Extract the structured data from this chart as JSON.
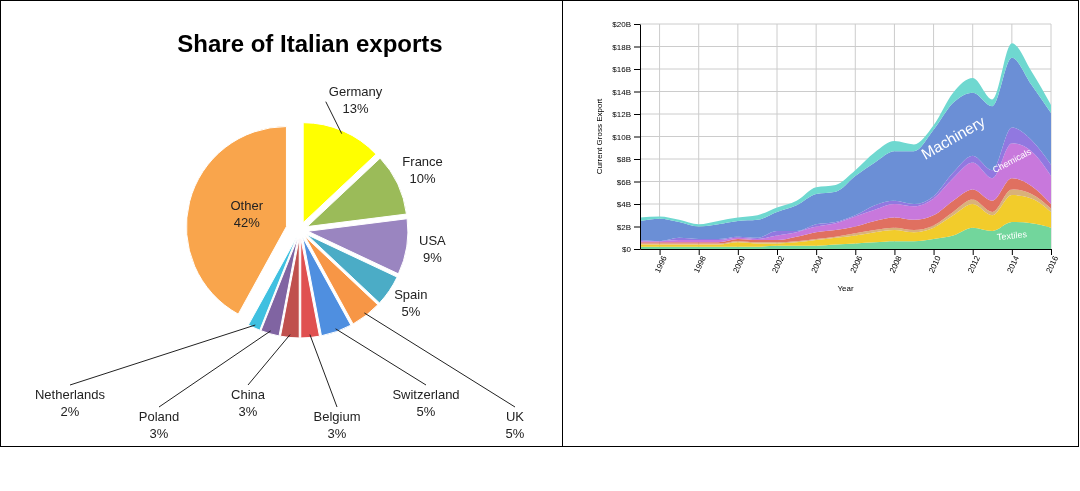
{
  "chart_data": [
    {
      "type": "pie",
      "title": "Share of Italian exports",
      "categories": [
        "Germany",
        "France",
        "USA",
        "Spain",
        "UK",
        "Switzerland",
        "Belgium",
        "China",
        "Poland",
        "Netherlands",
        "Other"
      ],
      "values": [
        13,
        10,
        9,
        5,
        5,
        5,
        3,
        3,
        3,
        2,
        42
      ],
      "colors": [
        "#ffff00",
        "#9bbb59",
        "#9a85c0",
        "#4bacc6",
        "#f79646",
        "#4f8fe0",
        "#e05050",
        "#c0504d",
        "#8064a2",
        "#3fc0e0",
        "#f9a54c"
      ],
      "value_labels": [
        "13%",
        "10%",
        "9%",
        "5%",
        "5%",
        "5%",
        "3%",
        "3%",
        "3%",
        "2%",
        "42%"
      ]
    },
    {
      "type": "area",
      "stacked": true,
      "xlabel": "Year",
      "ylabel": "Current Gross Export",
      "x": [
        1995,
        1996,
        1997,
        1998,
        1999,
        2000,
        2001,
        2002,
        2003,
        2004,
        2005,
        2006,
        2007,
        2008,
        2009,
        2010,
        2011,
        2012,
        2013,
        2014,
        2015,
        2016
      ],
      "series": [
        {
          "name": "Textiles",
          "color": "#72d69c",
          "values": [
            0.2,
            0.2,
            0.2,
            0.2,
            0.2,
            0.2,
            0.2,
            0.3,
            0.3,
            0.3,
            0.4,
            0.5,
            0.6,
            0.7,
            0.7,
            0.9,
            1.2,
            1.9,
            1.6,
            2.4,
            2.3,
            1.9
          ]
        },
        {
          "color": "#f2cc2b",
          "values": [
            0.2,
            0.2,
            0.2,
            0.2,
            0.2,
            0.4,
            0.3,
            0.2,
            0.3,
            0.5,
            0.6,
            0.7,
            0.9,
            1.0,
            0.8,
            1.0,
            1.8,
            2.1,
            1.4,
            2.4,
            2.2,
            1.4
          ]
        },
        {
          "color": "#d9b27a",
          "values": [
            0.1,
            0.1,
            0.1,
            0.1,
            0.1,
            0.1,
            0.1,
            0.1,
            0.1,
            0.1,
            0.1,
            0.2,
            0.2,
            0.2,
            0.2,
            0.2,
            0.3,
            0.4,
            0.3,
            0.5,
            0.4,
            0.3
          ]
        },
        {
          "color": "#e07060",
          "values": [
            0.1,
            0.1,
            0.1,
            0.1,
            0.1,
            0.2,
            0.2,
            0.2,
            0.4,
            0.6,
            0.6,
            0.6,
            0.8,
            0.9,
            0.9,
            0.9,
            1.0,
            0.9,
            1.0,
            1.0,
            0.7,
            0.4
          ]
        },
        {
          "name": "Chemicals",
          "color": "#c878dc",
          "values": [
            0.1,
            0.1,
            0.2,
            0.2,
            0.2,
            0.1,
            0.1,
            0.4,
            0.4,
            0.5,
            0.6,
            0.9,
            1.0,
            1.2,
            1.2,
            1.5,
            2.0,
            2.4,
            2.0,
            3.1,
            3.1,
            2.5
          ]
        },
        {
          "color": "#9178e0",
          "values": [
            0.1,
            0,
            0.2,
            0.1,
            0.1,
            0.1,
            0.1,
            0.4,
            0.1,
            0.2,
            0.1,
            0.1,
            0.4,
            0.3,
            0.2,
            0.2,
            0.5,
            0.6,
            0.7,
            1.4,
            1.0,
            1.0
          ]
        },
        {
          "name": "Machinery",
          "color": "#6b8fd6",
          "values": [
            1.7,
            2.0,
            1.4,
            1.1,
            1.3,
            1.4,
            1.6,
            1.7,
            2.3,
            2.7,
            2.7,
            3.5,
            3.8,
            4.4,
            4.7,
            5.9,
            6.2,
            5.6,
            5.7,
            6.2,
            4.9,
            4.6
          ]
        },
        {
          "color": "#6fd8d0",
          "values": [
            0.3,
            0.2,
            0.2,
            0.2,
            0.3,
            0.3,
            0.4,
            0.4,
            0.4,
            0.6,
            0.6,
            0.5,
            0.9,
            0.9,
            0.6,
            0.4,
            0.9,
            1.3,
            0.6,
            1.3,
            1.2,
            0.7
          ]
        }
      ],
      "xlim": [
        1995,
        2016
      ],
      "xticks": [
        1996,
        1998,
        2000,
        2002,
        2004,
        2006,
        2008,
        2010,
        2012,
        2014,
        2016
      ],
      "ylim": [
        0,
        20
      ],
      "yticks": [
        {
          "value": 0,
          "label": "$0"
        },
        {
          "value": 2,
          "label": "$2B"
        },
        {
          "value": 4,
          "label": "$4B"
        },
        {
          "value": 6,
          "label": "$6B"
        },
        {
          "value": 8,
          "label": "$8B"
        },
        {
          "value": 10,
          "label": "$10B"
        },
        {
          "value": 12,
          "label": "$12B"
        },
        {
          "value": 14,
          "label": "$14B"
        },
        {
          "value": 16,
          "label": "$16B"
        },
        {
          "value": 18,
          "label": "$18B"
        },
        {
          "value": 20,
          "label": "$20B"
        }
      ],
      "grid": true,
      "legend": false
    }
  ]
}
